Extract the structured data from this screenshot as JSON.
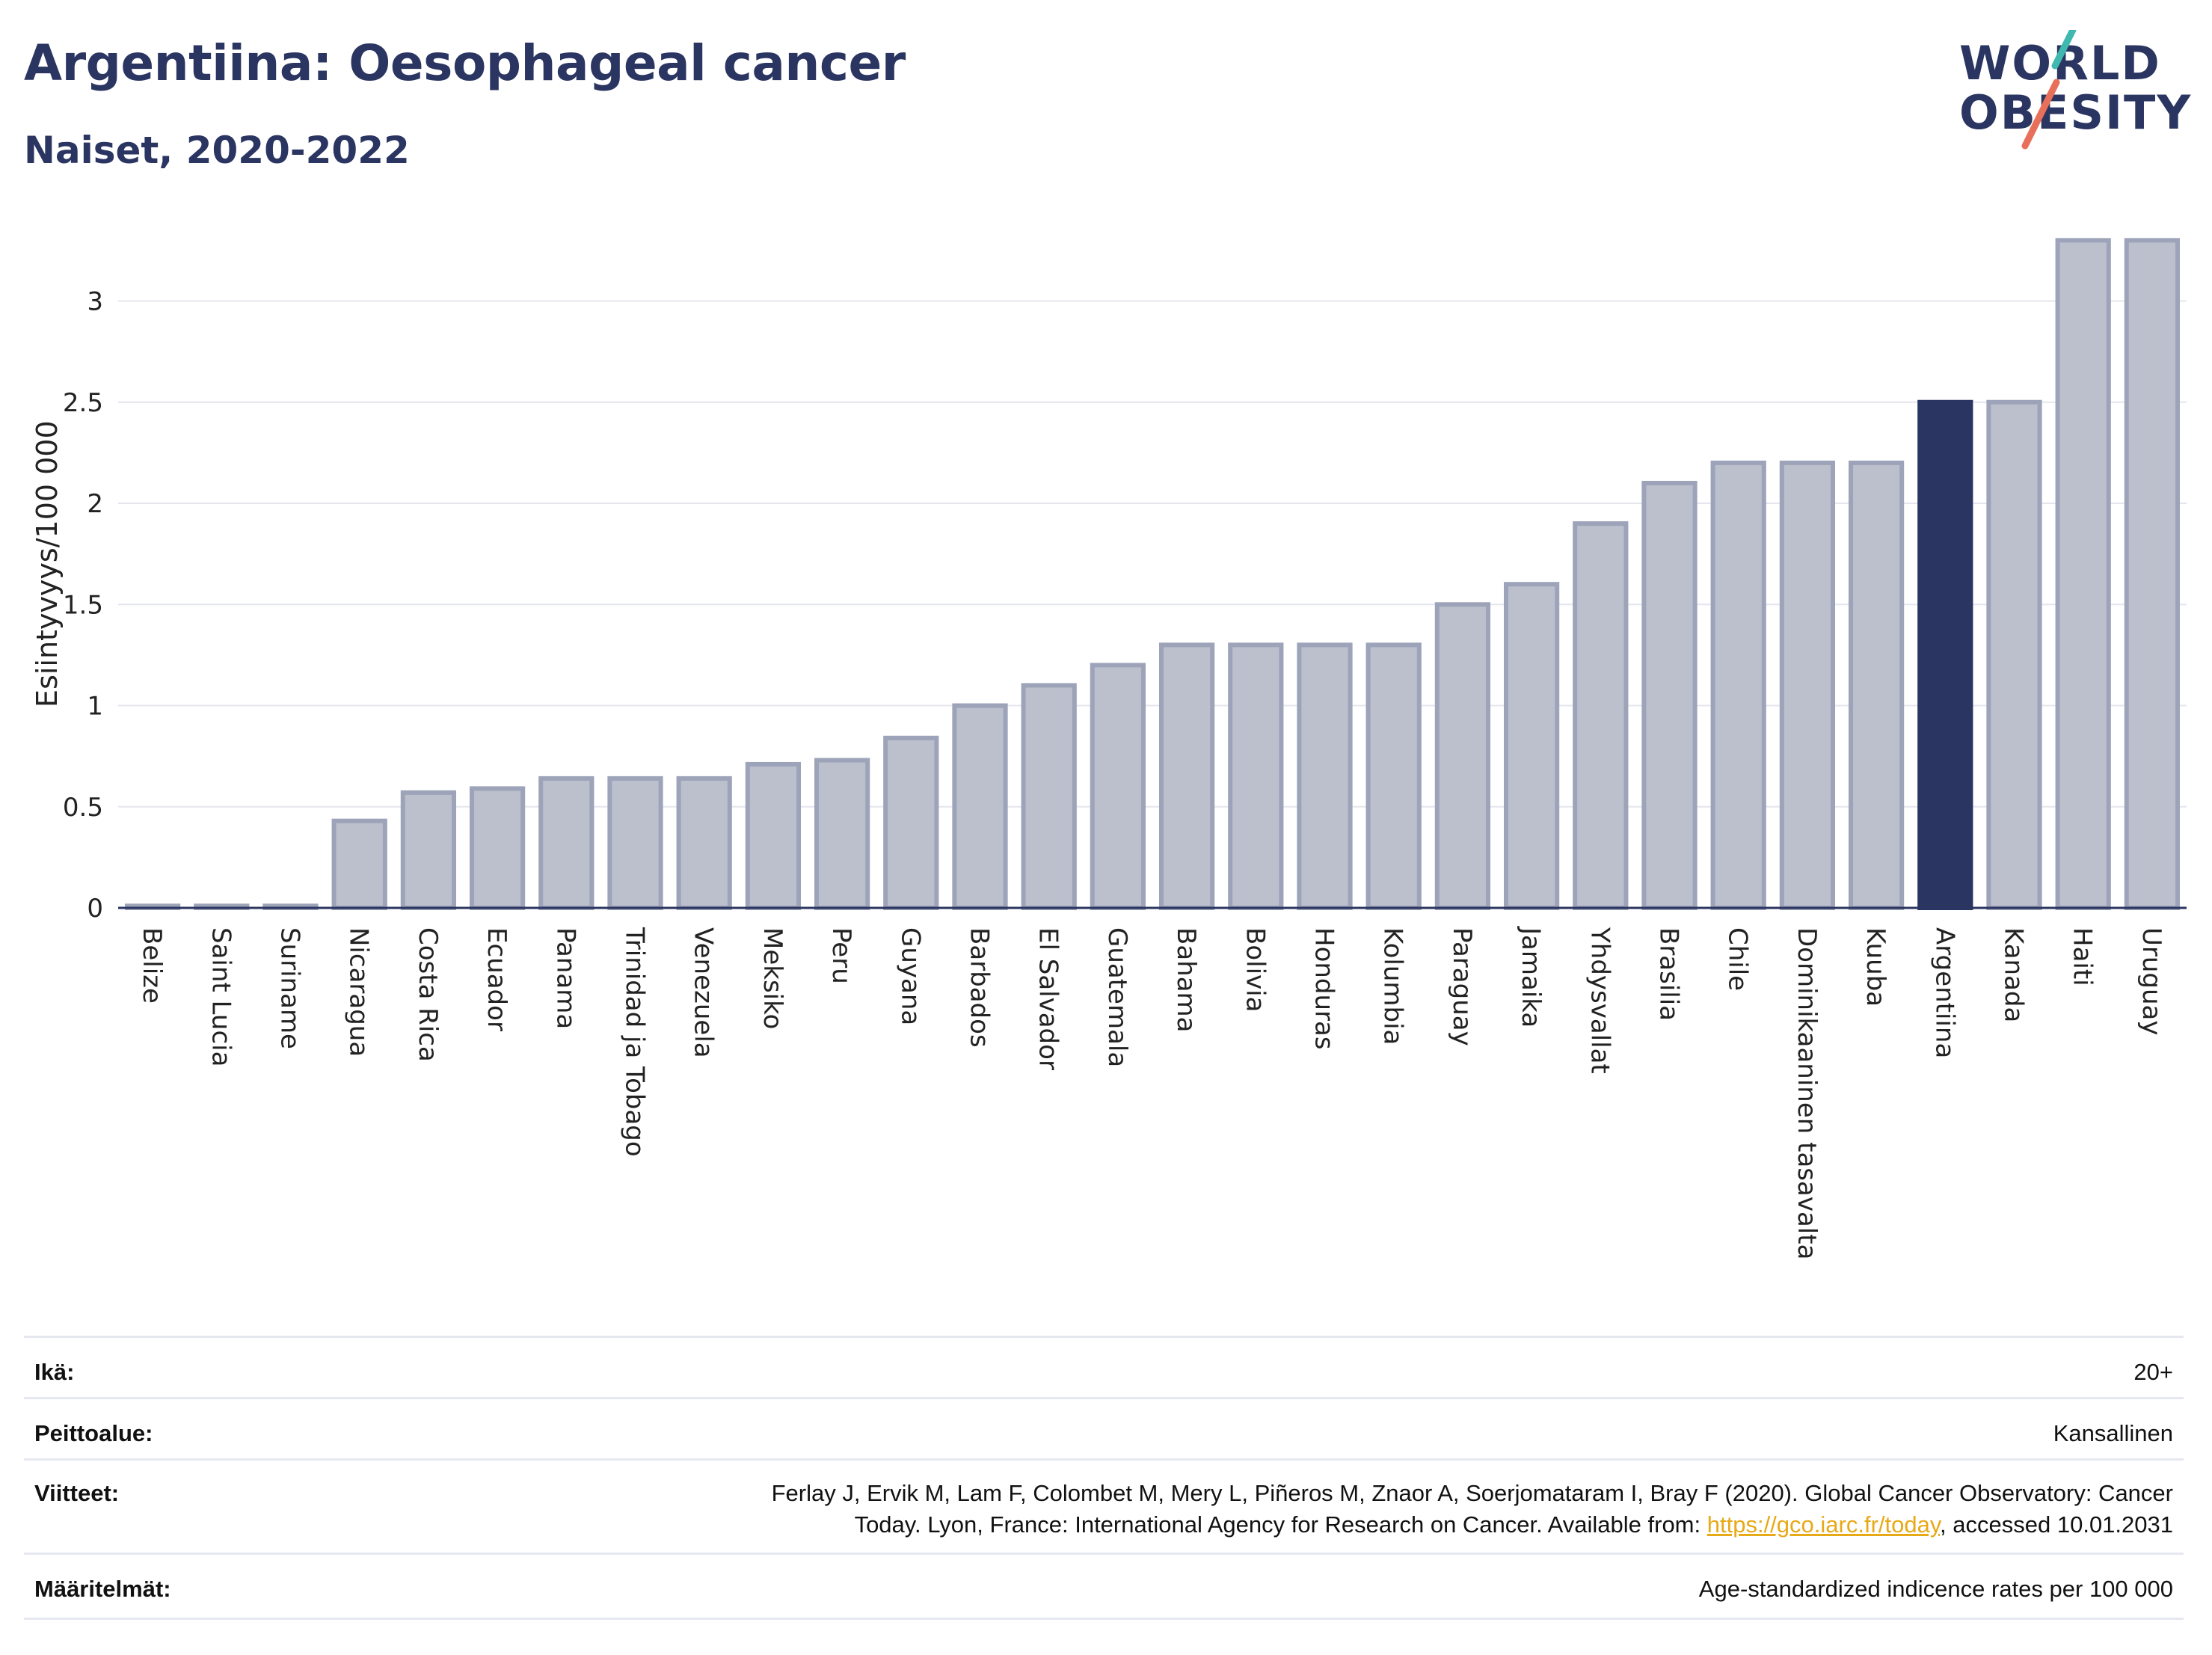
{
  "header": {
    "title": "Argentiina: Oesophageal cancer",
    "subtitle": "Naiset, 2020-2022"
  },
  "logo": {
    "line1": "WORLD",
    "line2": "OBESITY",
    "slash_colors": [
      "#3fb8af",
      "#e8705a"
    ]
  },
  "chart_data": {
    "type": "bar",
    "ylabel": "Esiintyvyys/100 000",
    "xlabel": "",
    "ylim": [
      0,
      3.3
    ],
    "yticks": [
      0,
      0.5,
      1,
      1.5,
      2,
      2.5,
      3
    ],
    "ytick_labels": [
      "0",
      "0.5",
      "1",
      "1.5",
      "2",
      "2.5",
      "3"
    ],
    "grid": true,
    "highlight": "Argentiina",
    "colors": {
      "bar": "#bcc0cd",
      "bar_edge": "#9da3b8",
      "highlight": "#2b3561"
    },
    "categories": [
      "Belize",
      "Saint Lucia",
      "Suriname",
      "Nicaragua",
      "Costa Rica",
      "Ecuador",
      "Panama",
      "Trinidad ja Tobago",
      "Venezuela",
      "Meksiko",
      "Peru",
      "Guyana",
      "Barbados",
      "El Salvador",
      "Guatemala",
      "Bahama",
      "Bolivia",
      "Honduras",
      "Kolumbia",
      "Paraguay",
      "Jamaika",
      "Yhdysvallat",
      "Brasilia",
      "Chile",
      "Dominikaaninen tasavalta",
      "Kuuba",
      "Argentiina",
      "Kanada",
      "Haiti",
      "Uruguay"
    ],
    "values": [
      0.01,
      0.01,
      0.01,
      0.43,
      0.57,
      0.59,
      0.64,
      0.64,
      0.64,
      0.71,
      0.73,
      0.84,
      1.0,
      1.1,
      1.2,
      1.3,
      1.3,
      1.3,
      1.3,
      1.5,
      1.6,
      1.9,
      2.1,
      2.2,
      2.2,
      2.2,
      2.5,
      2.5,
      3.3,
      3.3
    ]
  },
  "meta": {
    "age_label": "Ikä:",
    "age_value": "20+",
    "coverage_label": "Peittoalue:",
    "coverage_value": "Kansallinen",
    "refs_label": "Viitteet:",
    "refs_line1": "Ferlay J, Ervik M, Lam F, Colombet M, Mery L, Piñeros M, Znaor A, Soerjomataram I, Bray F (2020). Global Cancer Observatory: Cancer",
    "refs_line2_pre": "Today. Lyon, France: International Agency for Research on Cancer. Available from: ",
    "refs_link": "https://gco.iarc.fr/today",
    "refs_line2_post": ", accessed 10.01.2031",
    "defs_label": "Määritelmät:",
    "defs_value": "Age-standardized indicence rates per 100 000"
  }
}
